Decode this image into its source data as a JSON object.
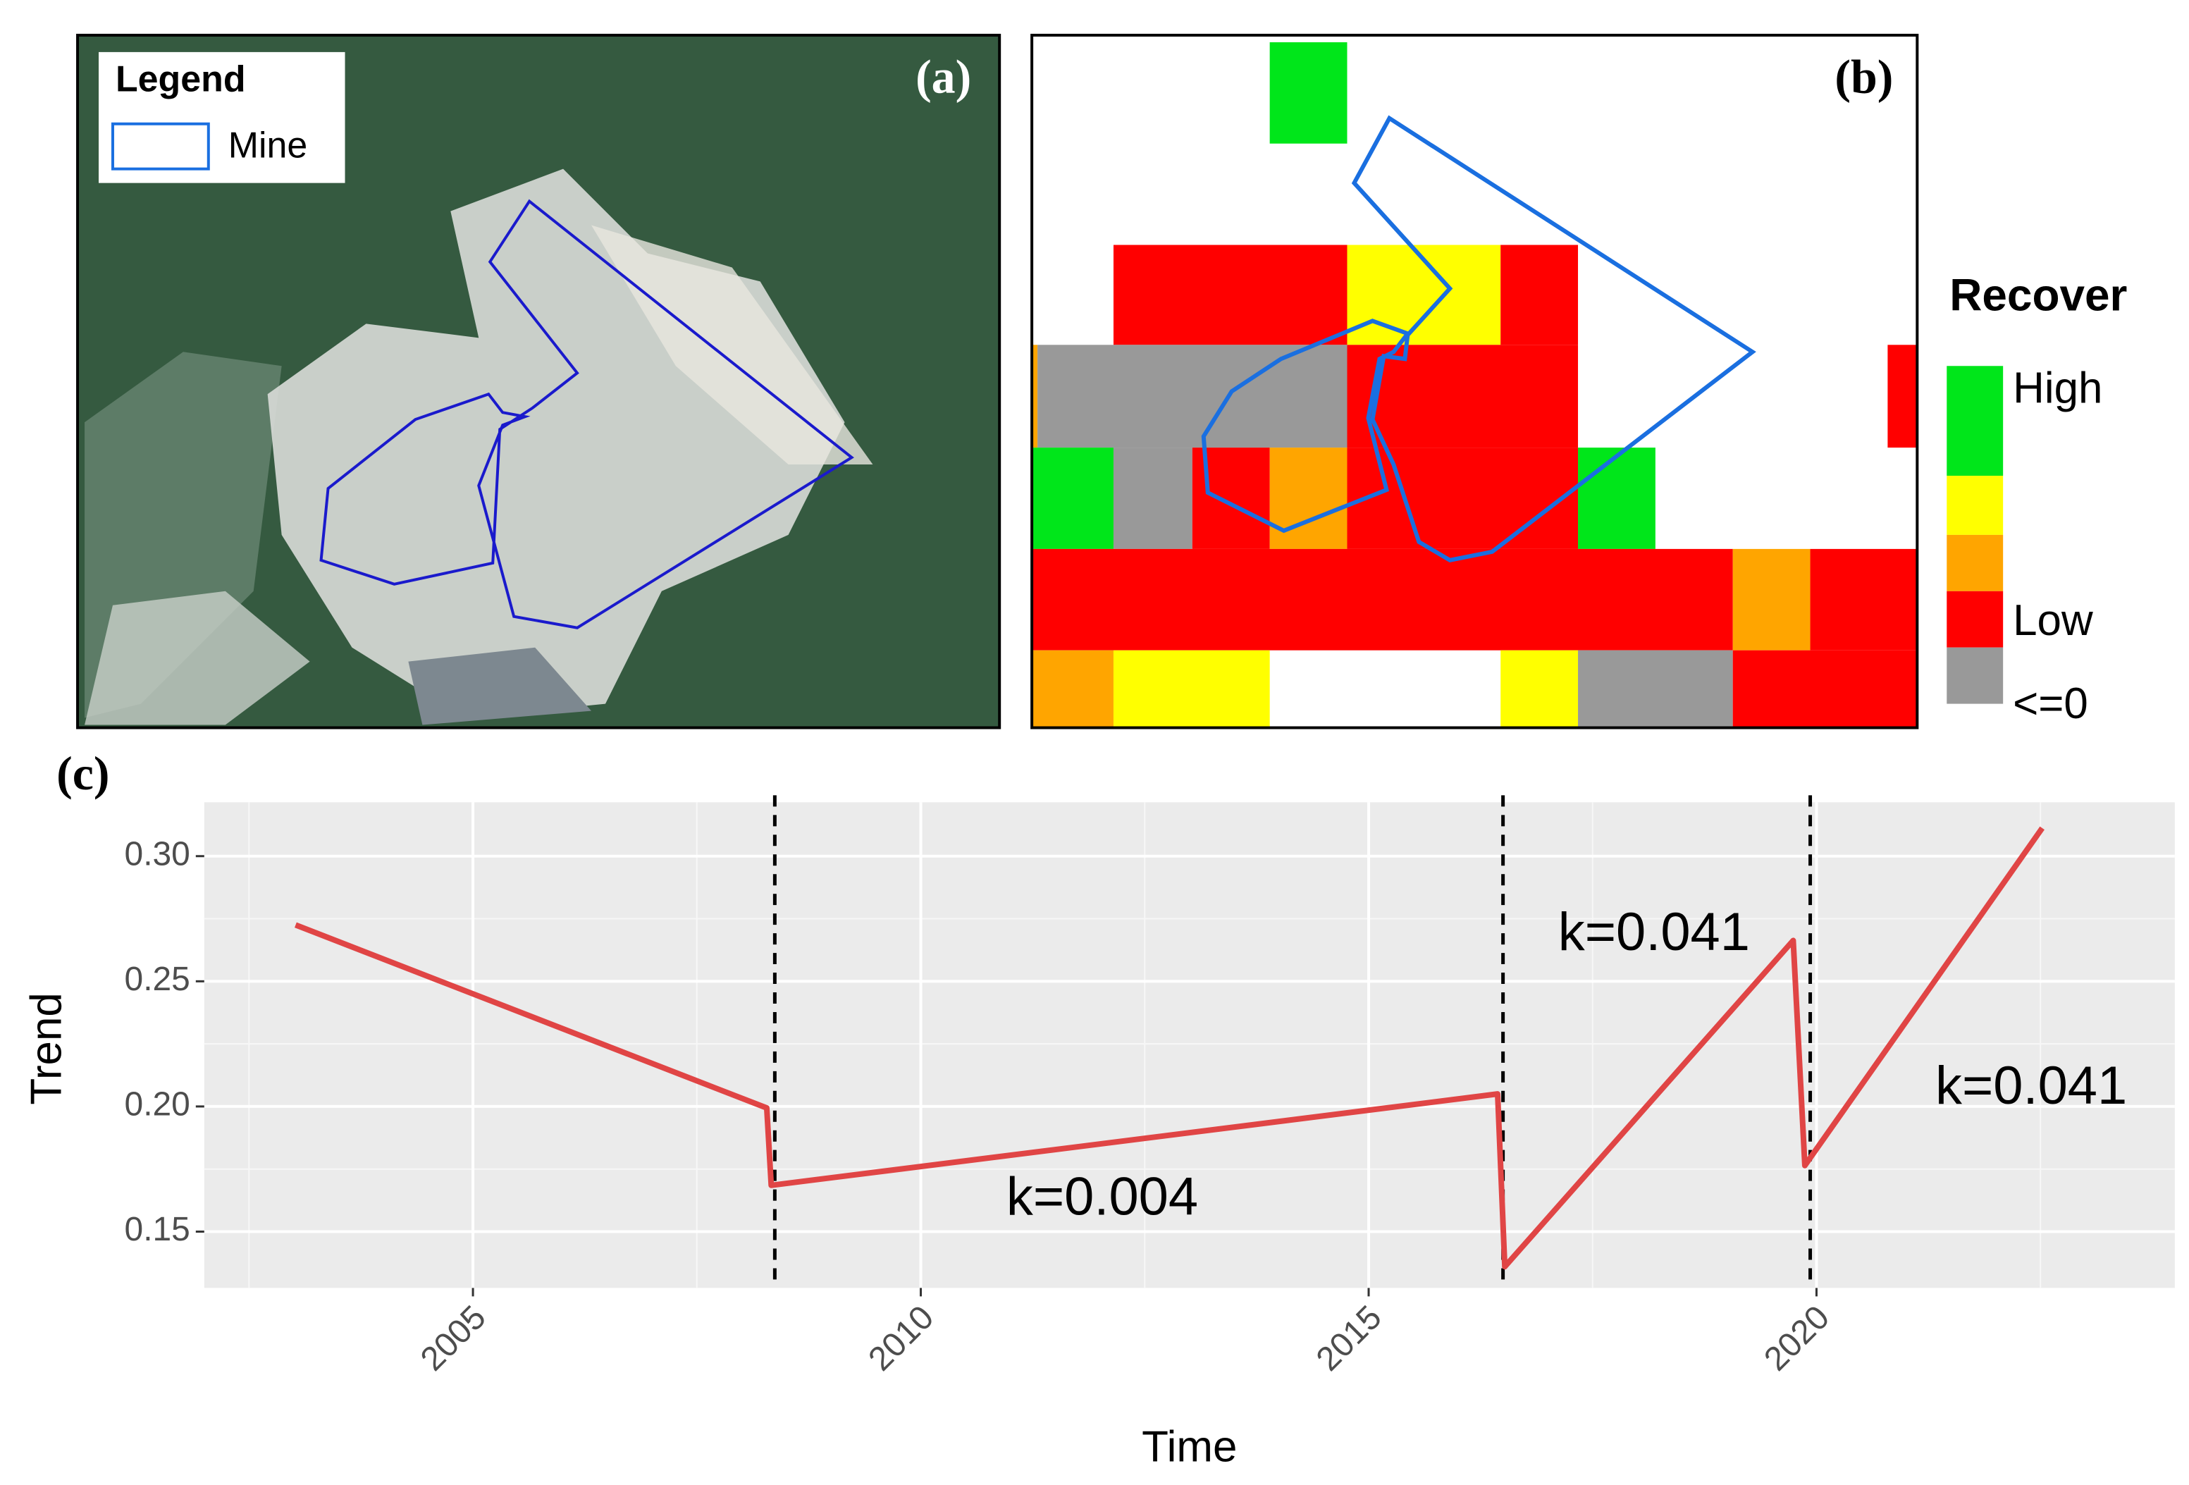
{
  "panel_a": {
    "label": "(a)",
    "legend_title": "Legend",
    "legend_entry": "Mine"
  },
  "panel_b": {
    "label": "(b)",
    "legend_title": "Recover",
    "legend_labels": [
      "High",
      null,
      null,
      "Low",
      "<=0"
    ],
    "legend_colors": [
      "#00e61a",
      "#ffff00",
      "#ffa500",
      "#ff0000",
      "#999999"
    ]
  },
  "chart_data": {
    "type": "line",
    "title": "(c)",
    "xlabel": "Time",
    "ylabel": "Trend",
    "x": [
      2003.02,
      2008.28,
      2008.33,
      2016.44,
      2016.52,
      2019.74,
      2019.87,
      2022.52
    ],
    "values": [
      0.2725,
      0.1994,
      0.1685,
      0.205,
      0.136,
      0.2663,
      0.1764,
      0.3112
    ],
    "color": "#e04545",
    "xlim": [
      2002,
      2024
    ],
    "ylim": [
      0.1275,
      0.3215
    ],
    "xticks": [
      2005,
      2010,
      2015,
      2020
    ],
    "yticks": [
      {
        "value": 0.15,
        "label": "0.15"
      },
      {
        "value": 0.2,
        "label": "0.20"
      },
      {
        "value": 0.25,
        "label": "0.25"
      },
      {
        "value": 0.3,
        "label": "0.30"
      }
    ],
    "vlines": [
      2008.37,
      2016.5,
      2019.93
    ],
    "annotations": [
      "k=0.004",
      "k=0.041",
      "k=0.041"
    ],
    "grid": true
  }
}
